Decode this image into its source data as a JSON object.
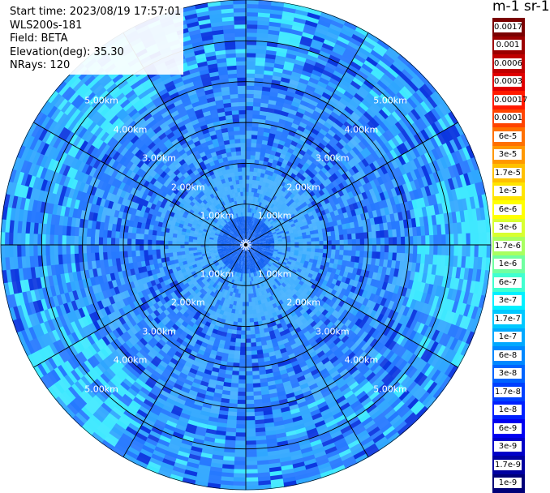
{
  "info": {
    "start_time": "Start time: 2023/08/19 17:57:01",
    "instrument": "WLS200s-181",
    "field": "Field: BETA",
    "elevation": "Elevation(deg): 35.30",
    "nrays": "NRays: 120"
  },
  "colorbar": {
    "unit": "m-1 sr-1",
    "labels": [
      "0.0017",
      "0.001",
      "0.0006",
      "0.0003",
      "0.00017",
      "0.0001",
      "6e-5",
      "3e-5",
      "1.7e-5",
      "1e-5",
      "6e-6",
      "3e-6",
      "1.7e-6",
      "1e-6",
      "6e-7",
      "3e-7",
      "1.7e-7",
      "1e-7",
      "6e-8",
      "3e-8",
      "1.7e-8",
      "1e-8",
      "6e-9",
      "3e-9",
      "1.7e-9",
      "1e-9"
    ],
    "colors": [
      "#7a0000",
      "#9c0000",
      "#c00000",
      "#e00000",
      "#ff1a00",
      "#ff4400",
      "#ff7000",
      "#ff9800",
      "#ffc000",
      "#ffe400",
      "#ffff00",
      "#d8ff30",
      "#a8ff60",
      "#70ffa0",
      "#40ffd0",
      "#00f0ff",
      "#00c8ff",
      "#00a8ff",
      "#0088ff",
      "#0064ff",
      "#0040ff",
      "#0020ff",
      "#0000f0",
      "#0000c8",
      "#0000a0",
      "#000078"
    ]
  },
  "chart_data": {
    "type": "heatmap",
    "projection": "polar PPI",
    "field": "BETA",
    "rays": 120,
    "max_range_km": 6.0,
    "range_rings_km": [
      1.0,
      2.0,
      3.0,
      4.0,
      5.0
    ],
    "range_labels": [
      "1.00km",
      "2.00km",
      "3.00km",
      "4.00km",
      "5.00km"
    ],
    "spoke_step_deg": 30,
    "colors": {
      "center": "#1060f2",
      "band": "#44b0ff",
      "mid": "#2478ff",
      "outer": "#2ea6ff",
      "bright": "#3ce8ff",
      "dark": "#0a36e0"
    }
  }
}
